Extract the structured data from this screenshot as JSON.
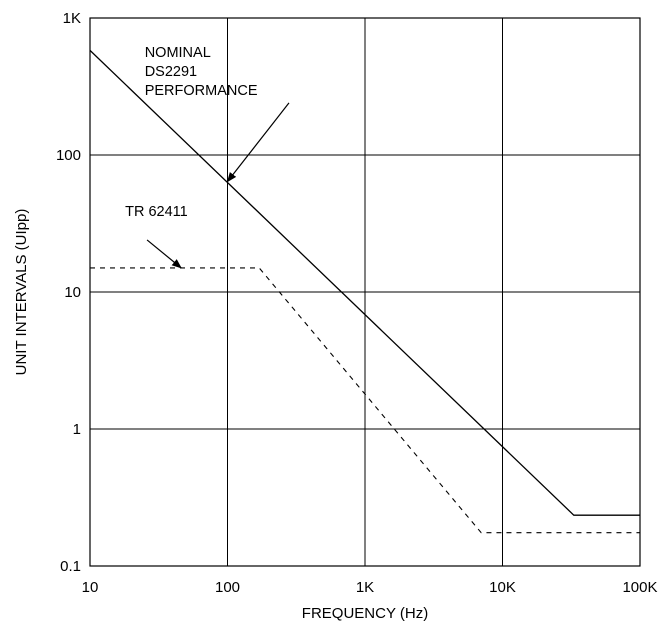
{
  "chart_data": {
    "type": "line",
    "title": "",
    "xlabel": "FREQUENCY (Hz)",
    "ylabel": "UNIT INTERVALS (UIpp)",
    "x_scale": "log",
    "y_scale": "log",
    "xlim": [
      10,
      100000
    ],
    "ylim": [
      0.1,
      1000
    ],
    "grid": true,
    "x_ticks": [
      {
        "value": 10,
        "label": "10"
      },
      {
        "value": 100,
        "label": "100"
      },
      {
        "value": 1000,
        "label": "1K"
      },
      {
        "value": 10000,
        "label": "10K"
      },
      {
        "value": 100000,
        "label": "100K"
      }
    ],
    "y_ticks": [
      {
        "value": 0.1,
        "label": "0.1"
      },
      {
        "value": 1,
        "label": "1"
      },
      {
        "value": 10,
        "label": "10"
      },
      {
        "value": 100,
        "label": "100"
      },
      {
        "value": 1000,
        "label": "1K"
      }
    ],
    "series": [
      {
        "style": "solid",
        "points": [
          [
            10,
            580
          ],
          [
            33000,
            0.235
          ],
          [
            100000,
            0.235
          ]
        ]
      },
      {
        "style": "dashed",
        "points": [
          [
            10,
            15
          ],
          [
            170,
            15
          ],
          [
            7000,
            0.175
          ],
          [
            100000,
            0.175
          ]
        ]
      }
    ],
    "annotations": [
      {
        "lines": [
          "NOMINAL",
          "DS2291",
          "PERFORMANCE"
        ],
        "text_at": [
          25,
          520
        ],
        "arrow_from": [
          280,
          240
        ],
        "arrow_to": [
          100,
          64
        ]
      },
      {
        "lines": [
          "TR 62411"
        ],
        "text_at": [
          18,
          36
        ],
        "arrow_from": [
          26,
          24
        ],
        "arrow_to": [
          46,
          15
        ]
      }
    ]
  }
}
